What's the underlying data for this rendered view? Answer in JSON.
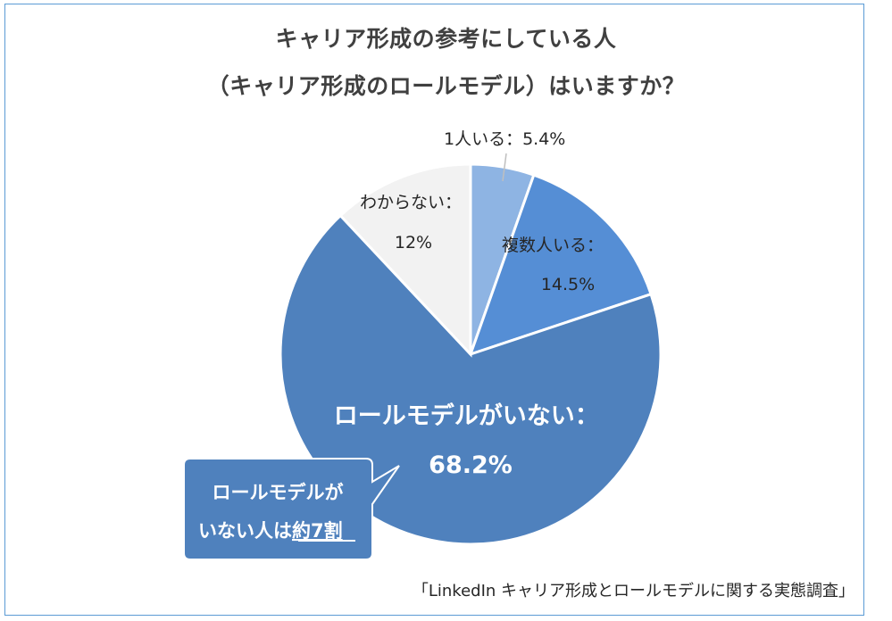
{
  "title_line1": "キャリア形成の参考にしている人",
  "title_line2": "（キャリア形成のロールモデル）はいますか？",
  "source": "「LinkedIn キャリア形成とロールモデルに関する実態調査」",
  "callout": {
    "line1": "ロールモデルが",
    "line2_prefix": "いない人は",
    "line2_emph": "約7割"
  },
  "colors": {
    "one_person": "#8eb4e3",
    "several": "#558ed5",
    "none": "#4f81bd",
    "unknown": "#f2f2f2",
    "callout": "#4f81bd"
  },
  "chart_data": {
    "type": "pie",
    "title": "キャリア形成の参考にしている人（キャリア形成のロールモデル）はいますか？",
    "slices": [
      {
        "label": "1人いる：5.4%",
        "label_lines": [
          "1人いる：5.4%"
        ],
        "value": 5.4,
        "color": "#8eb4e3"
      },
      {
        "label": "複数人いる：14.5%",
        "label_lines": [
          "複数人いる：",
          "14.5%"
        ],
        "value": 14.5,
        "color": "#558ed5"
      },
      {
        "label": "ロールモデルがいない：68.2%",
        "label_lines": [
          "ロールモデルがいない：",
          "68.2%"
        ],
        "value": 68.2,
        "color": "#4f81bd"
      },
      {
        "label": "わからない：12%",
        "label_lines": [
          "わからない：",
          "12%"
        ],
        "value": 12,
        "color": "#f2f2f2"
      }
    ],
    "start_angle_deg": 0,
    "direction": "clockwise"
  }
}
